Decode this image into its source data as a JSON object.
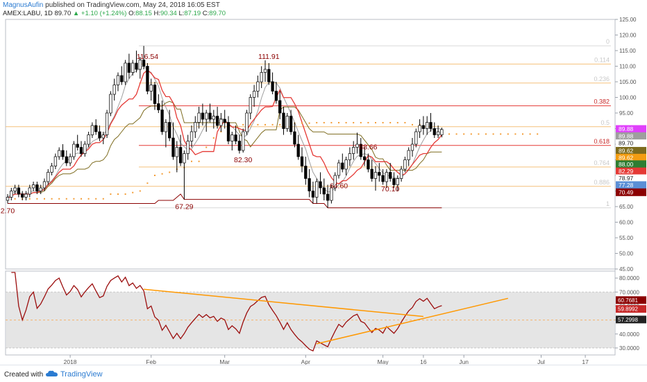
{
  "header": {
    "author": "MagnusAufin",
    "published_text": "published on TradingView.com, May 24, 2018 16:05 EST",
    "symbol": "AMEX:LABU, 1D",
    "last": "89.70",
    "change": "+1.10 (+1.24%)",
    "o_label": "O:",
    "o_value": "88.15",
    "h_label": "H:",
    "h_value": "90.34",
    "l_label": "L:",
    "l_value": "87.19",
    "c_label": "C:",
    "c_value": "89.70"
  },
  "footer": {
    "created_with": "Created with",
    "brand": "TradingView"
  },
  "colors": {
    "up_candle": "#ffffff",
    "down_candle": "#000000",
    "red_line": "#e53935",
    "olive_line": "#7d6b1e",
    "gray_line": "#9e9e9e",
    "fib_line": "#f5a623",
    "rsi_line": "#9b0d0d",
    "trend_line": "#ff9800",
    "dots": "#f39c34"
  },
  "chart_data": {
    "type": "candlestick",
    "price_axis": {
      "ticks": [
        "125.00",
        "120.00",
        "115.00",
        "110.00",
        "105.00",
        "100.00",
        "95.00",
        "90.00",
        "85.00",
        "80.00",
        "75.00",
        "70.00",
        "65.00",
        "60.00",
        "55.00",
        "50.00",
        "45.00"
      ],
      "ylim": [
        45,
        125
      ]
    },
    "time_axis": {
      "ticks": [
        "2018",
        "Feb",
        "Mar",
        "Apr",
        "May",
        "16",
        "Jun",
        "Jul",
        "17"
      ]
    },
    "annotations": [
      {
        "text": "116.54",
        "date_index": 38
      },
      {
        "text": "111.91",
        "date_index": 71
      },
      {
        "text": "88.66",
        "date_index": 98
      },
      {
        "text": "82.30",
        "date_index": 64
      },
      {
        "text": "67.29",
        "date_index": 48
      },
      {
        "text": "64.60",
        "date_index": 90
      },
      {
        "text": "70.10",
        "date_index": 104
      },
      {
        "text": "2.70",
        "date_index": 0
      }
    ],
    "fib_levels": [
      {
        "label": "0",
        "price": 116.54
      },
      {
        "label": "0.114",
        "price": 110.7
      },
      {
        "label": "0.236",
        "price": 104.6
      },
      {
        "label": "0.382",
        "price": 97.3
      },
      {
        "label": "0.5",
        "price": 90.6
      },
      {
        "label": "0.618",
        "price": 84.6
      },
      {
        "label": "0.764",
        "price": 77.7
      },
      {
        "label": "0.886",
        "price": 71.5
      },
      {
        "label": "1",
        "price": 64.6
      }
    ],
    "price_badges": [
      {
        "text": "89.88",
        "price": 89.88,
        "bg": "#e040fb",
        "fg": "#ffffff"
      },
      {
        "text": "89.88",
        "price": 87.6,
        "bg": "#9e9e9e",
        "fg": "#ffffff"
      },
      {
        "text": "89.70",
        "price": 85.3,
        "bg": "#ffffff",
        "fg": "#222222"
      },
      {
        "text": "89.62",
        "price": 82.9,
        "bg": "#7d6b1e",
        "fg": "#ffffff"
      },
      {
        "text": "89.62",
        "price": 80.7,
        "bg": "#f39c12",
        "fg": "#ffffff"
      },
      {
        "text": "88.00",
        "price": 78.6,
        "bg": "#2e7d32",
        "fg": "#ffffff"
      },
      {
        "text": "82.29",
        "price": 76.3,
        "bg": "#e53935",
        "fg": "#ffffff"
      },
      {
        "text": "78.97",
        "price": 74.1,
        "bg": "#ffffff",
        "fg": "#222222"
      },
      {
        "text": "77.28",
        "price": 71.9,
        "bg": "#5b8fd6",
        "fg": "#ffffff"
      },
      {
        "text": "70.49",
        "price": 69.6,
        "bg": "#8b0000",
        "fg": "#ffffff"
      }
    ],
    "candles": [
      [
        67,
        69,
        66,
        68
      ],
      [
        68,
        71,
        67,
        70
      ],
      [
        70,
        72,
        69,
        71
      ],
      [
        71,
        72,
        68,
        69
      ],
      [
        69,
        70,
        67,
        68
      ],
      [
        68,
        70,
        67,
        69
      ],
      [
        69,
        72,
        68,
        71
      ],
      [
        71,
        73,
        70,
        72
      ],
      [
        72,
        73,
        69,
        70
      ],
      [
        70,
        72,
        69,
        71
      ],
      [
        71,
        74,
        70,
        73
      ],
      [
        73,
        77,
        72,
        76
      ],
      [
        76,
        79,
        75,
        78
      ],
      [
        78,
        82,
        77,
        81
      ],
      [
        81,
        84,
        80,
        83
      ],
      [
        83,
        85,
        80,
        81
      ],
      [
        81,
        83,
        78,
        79
      ],
      [
        79,
        82,
        78,
        81
      ],
      [
        81,
        86,
        80,
        85
      ],
      [
        85,
        88,
        83,
        84
      ],
      [
        84,
        86,
        81,
        82
      ],
      [
        82,
        86,
        81,
        85
      ],
      [
        85,
        89,
        84,
        88
      ],
      [
        88,
        92,
        87,
        91
      ],
      [
        91,
        93,
        88,
        89
      ],
      [
        89,
        91,
        86,
        87
      ],
      [
        87,
        89,
        85,
        88
      ],
      [
        88,
        96,
        87,
        95
      ],
      [
        95,
        102,
        94,
        101
      ],
      [
        101,
        106,
        99,
        104
      ],
      [
        104,
        108,
        102,
        107
      ],
      [
        107,
        110,
        104,
        105
      ],
      [
        105,
        112,
        104,
        111
      ],
      [
        111,
        114,
        106,
        108
      ],
      [
        108,
        112,
        107,
        111
      ],
      [
        111,
        115,
        108,
        109
      ],
      [
        109,
        113,
        106,
        112
      ],
      [
        112,
        116.5,
        109,
        110
      ],
      [
        110,
        111,
        101,
        102
      ],
      [
        102,
        106,
        99,
        104
      ],
      [
        104,
        105,
        96,
        98
      ],
      [
        98,
        101,
        95,
        96
      ],
      [
        96,
        99,
        88,
        89
      ],
      [
        89,
        93,
        84,
        92
      ],
      [
        92,
        96,
        86,
        87
      ],
      [
        87,
        92,
        80,
        81
      ],
      [
        81,
        86,
        76,
        84
      ],
      [
        84,
        88,
        78,
        79
      ],
      [
        79,
        83,
        67.3,
        82
      ],
      [
        82,
        88,
        80,
        86
      ],
      [
        86,
        91,
        84,
        89
      ],
      [
        89,
        94,
        87,
        92
      ],
      [
        92,
        97,
        90,
        95
      ],
      [
        95,
        98,
        91,
        93
      ],
      [
        93,
        96,
        89,
        95
      ],
      [
        95,
        98,
        92,
        93
      ],
      [
        93,
        96,
        90,
        94
      ],
      [
        94,
        97,
        90,
        91
      ],
      [
        91,
        95,
        89,
        93
      ],
      [
        93,
        96,
        90,
        92
      ],
      [
        92,
        94,
        85,
        86
      ],
      [
        86,
        89,
        83,
        88
      ],
      [
        88,
        91,
        85,
        86
      ],
      [
        86,
        88,
        82,
        83
      ],
      [
        83,
        90,
        82.3,
        89
      ],
      [
        89,
        96,
        88,
        95
      ],
      [
        95,
        101,
        93,
        100
      ],
      [
        100,
        104,
        97,
        102
      ],
      [
        102,
        107,
        100,
        105
      ],
      [
        105,
        110,
        103,
        108
      ],
      [
        108,
        111.9,
        105,
        109
      ],
      [
        109,
        111,
        104,
        105
      ],
      [
        105,
        108,
        101,
        102
      ],
      [
        102,
        105,
        98,
        99
      ],
      [
        99,
        102,
        93,
        95
      ],
      [
        95,
        97,
        88,
        90
      ],
      [
        90,
        95,
        89,
        94
      ],
      [
        94,
        96,
        88,
        89
      ],
      [
        89,
        92,
        84,
        85
      ],
      [
        85,
        88,
        80,
        81
      ],
      [
        81,
        84,
        76,
        78
      ],
      [
        78,
        81,
        72,
        74
      ],
      [
        74,
        77,
        68,
        70
      ],
      [
        70,
        73,
        66,
        68
      ],
      [
        68,
        74,
        66,
        73
      ],
      [
        73,
        76,
        69,
        71
      ],
      [
        71,
        74,
        67,
        69
      ],
      [
        69,
        72,
        64.6,
        67
      ],
      [
        67,
        72,
        66,
        71
      ],
      [
        71,
        76,
        70,
        75
      ],
      [
        75,
        80,
        74,
        79
      ],
      [
        79,
        82,
        76,
        77
      ],
      [
        77,
        81,
        75,
        80
      ],
      [
        80,
        84,
        78,
        82
      ],
      [
        82,
        86,
        80,
        84
      ],
      [
        84,
        88.7,
        82,
        85
      ],
      [
        85,
        87,
        80,
        81
      ],
      [
        81,
        84,
        78,
        80
      ],
      [
        80,
        82,
        76,
        77
      ],
      [
        77,
        80,
        73,
        74
      ],
      [
        74,
        78,
        70.1,
        76
      ],
      [
        76,
        79,
        73,
        75
      ],
      [
        75,
        77,
        72,
        73
      ],
      [
        73,
        77,
        71,
        76
      ],
      [
        76,
        79,
        73,
        74
      ],
      [
        74,
        76,
        71,
        72
      ],
      [
        72,
        75,
        70,
        74
      ],
      [
        74,
        78,
        73,
        77
      ],
      [
        77,
        81,
        76,
        80
      ],
      [
        80,
        84,
        78,
        83
      ],
      [
        83,
        87,
        81,
        85
      ],
      [
        85,
        90,
        84,
        89
      ],
      [
        89,
        93,
        87,
        91
      ],
      [
        91,
        94,
        88,
        90
      ],
      [
        90,
        94,
        88,
        92
      ],
      [
        92,
        95,
        89,
        90
      ],
      [
        90,
        92,
        87,
        88
      ],
      [
        88,
        91,
        87,
        89
      ],
      [
        88,
        90.3,
        87.2,
        89.7
      ]
    ],
    "rsi": {
      "ticks": [
        "80.0000",
        "70.0000",
        "60.0000",
        "50.0000",
        "40.0000",
        "30.0000"
      ],
      "ylim": [
        25,
        85
      ],
      "band": [
        30,
        70
      ],
      "midline": 50,
      "badges": [
        {
          "text": "60.7681",
          "bg": "#8b0000",
          "fg": "#ffffff"
        },
        {
          "text": "59.8992",
          "bg": "#c62828",
          "fg": "#ffffff"
        },
        {
          "text": "57.2998",
          "bg": "#222222",
          "fg": "#ffffff"
        }
      ]
    }
  }
}
